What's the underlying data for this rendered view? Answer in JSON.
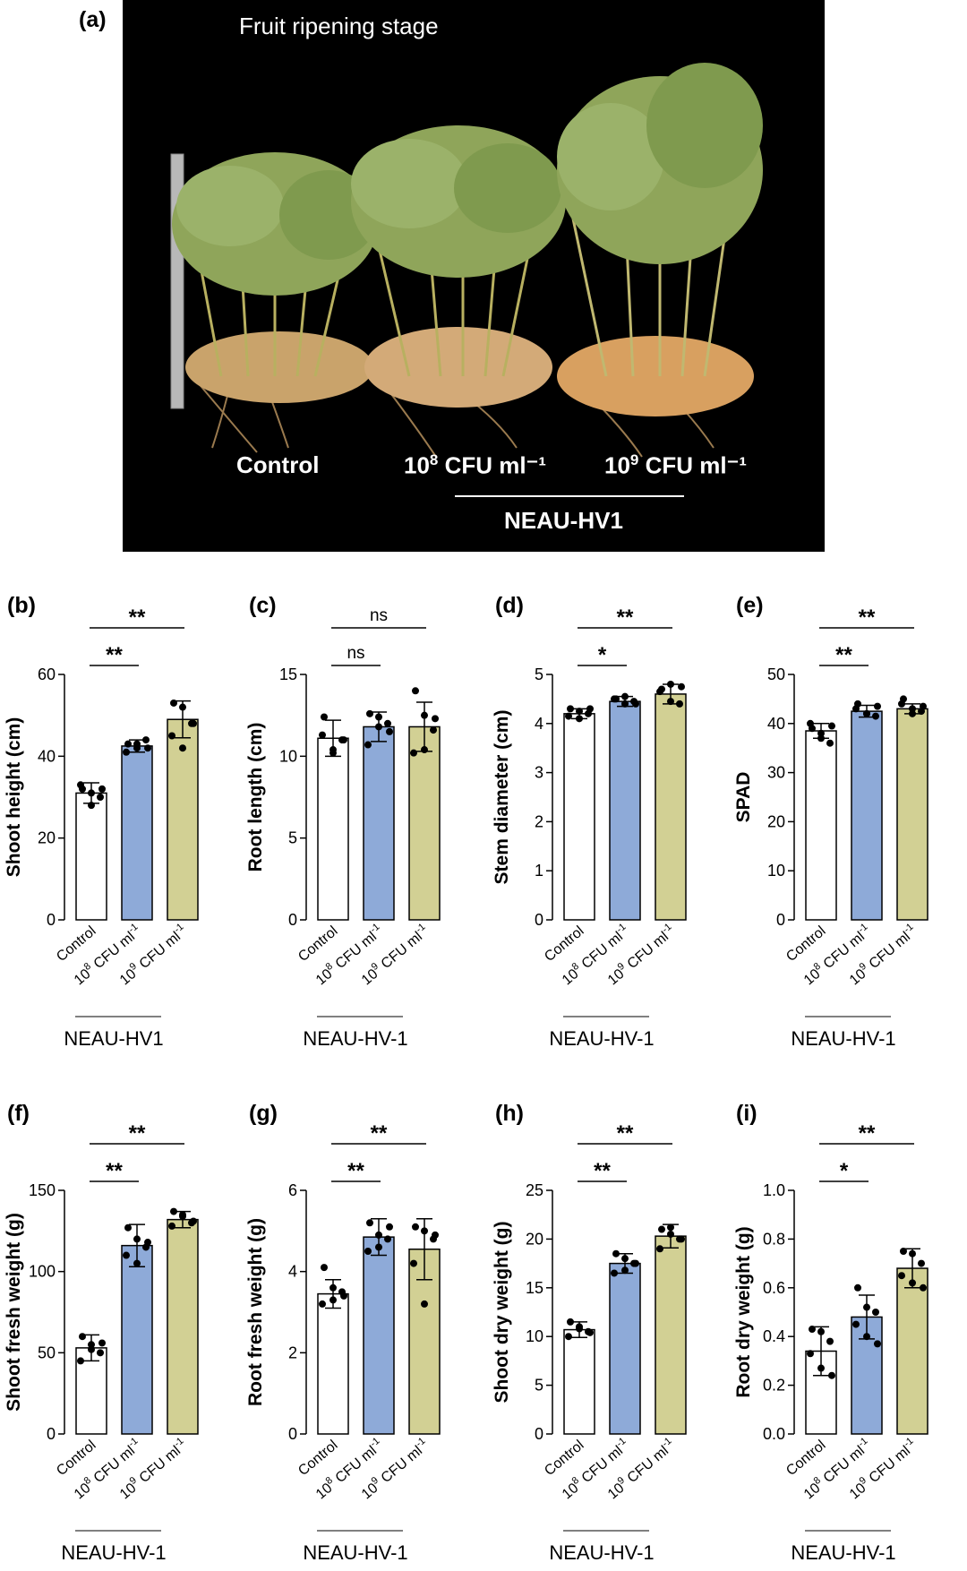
{
  "figure": {
    "panel_a": {
      "label": "(a)",
      "title": "Fruit ripening stage",
      "groups": [
        "Control",
        "10",
        "10"
      ],
      "group_sup": [
        "",
        "8",
        "9"
      ],
      "group_unit": [
        "",
        " CFU ml⁻¹",
        " CFU ml⁻¹"
      ],
      "strain": "NEAU-HV1",
      "colors": {
        "background": "#000000",
        "foliage": "#8fa55a",
        "pods": "#c9a36b",
        "ruler": "#b8b8b8"
      }
    }
  },
  "chart_data": [
    {
      "type": "bar",
      "panel": "(b)",
      "ylabel": "Shoot height (cm)",
      "ylim": [
        0,
        60
      ],
      "yticks": [
        0,
        20,
        40,
        60
      ],
      "categories": [
        "Control",
        "10^8 CFU ml^-1",
        "10^9 CFU ml^-1"
      ],
      "values": [
        31,
        42.5,
        49
      ],
      "errors": [
        2.5,
        1.5,
        4.5
      ],
      "points": [
        [
          32,
          31,
          30,
          33,
          28,
          32
        ],
        [
          43,
          42,
          44,
          41,
          43,
          42
        ],
        [
          53,
          52,
          48,
          45,
          42,
          48
        ]
      ],
      "sig": [
        {
          "from": 0,
          "to": 1,
          "text": "**"
        },
        {
          "from": 0,
          "to": 2,
          "text": "**"
        }
      ],
      "strain": "NEAU-HV1",
      "colors": [
        "#ffffff",
        "#8eaad8",
        "#d2d094"
      ]
    },
    {
      "type": "bar",
      "panel": "(c)",
      "ylabel": "Root length (cm)",
      "ylim": [
        0,
        15
      ],
      "yticks": [
        0,
        5,
        10,
        15
      ],
      "categories": [
        "Control",
        "10^8 CFU ml^-1",
        "10^9 CFU ml^-1"
      ],
      "values": [
        11.1,
        11.8,
        11.8
      ],
      "errors": [
        1.1,
        0.9,
        1.5
      ],
      "points": [
        [
          12.4,
          10.2,
          11,
          11.3,
          10.4,
          11
        ],
        [
          12.6,
          11.8,
          12,
          10.7,
          12.4,
          11.5
        ],
        [
          14,
          12.5,
          11.6,
          10.2,
          10.4,
          12.3
        ]
      ],
      "sig": [
        {
          "from": 0,
          "to": 1,
          "text": "ns"
        },
        {
          "from": 0,
          "to": 2,
          "text": "ns"
        }
      ],
      "strain": "NEAU-HV-1",
      "colors": [
        "#ffffff",
        "#8eaad8",
        "#d2d094"
      ]
    },
    {
      "type": "bar",
      "panel": "(d)",
      "ylabel": "Stem diameter (cm)",
      "ylim": [
        0,
        5
      ],
      "yticks": [
        0,
        1,
        2,
        3,
        4,
        5
      ],
      "categories": [
        "Control",
        "10^8 CFU ml^-1",
        "10^9 CFU ml^-1"
      ],
      "values": [
        4.2,
        4.45,
        4.6
      ],
      "errors": [
        0.1,
        0.1,
        0.2
      ],
      "points": [
        [
          4.3,
          4.1,
          4.2,
          4.15,
          4.25,
          4.3
        ],
        [
          4.5,
          4.4,
          4.45,
          4.5,
          4.55,
          4.4
        ],
        [
          4.7,
          4.8,
          4.4,
          4.65,
          4.45,
          4.75
        ]
      ],
      "sig": [
        {
          "from": 0,
          "to": 1,
          "text": "*"
        },
        {
          "from": 0,
          "to": 2,
          "text": "**"
        }
      ],
      "strain": "NEAU-HV-1",
      "colors": [
        "#ffffff",
        "#8eaad8",
        "#d2d094"
      ]
    },
    {
      "type": "bar",
      "panel": "(e)",
      "ylabel": "SPAD",
      "ylim": [
        0,
        50
      ],
      "yticks": [
        0,
        10,
        20,
        30,
        40,
        50
      ],
      "categories": [
        "Control",
        "10^8 CFU ml^-1",
        "10^9 CFU ml^-1"
      ],
      "values": [
        38.5,
        42.5,
        43
      ],
      "errors": [
        1.5,
        1.2,
        1
      ],
      "points": [
        [
          39,
          37,
          36,
          40,
          38,
          39.5
        ],
        [
          44,
          42,
          41.5,
          43,
          42,
          43.5
        ],
        [
          45,
          43,
          42.5,
          44,
          42,
          43.5
        ]
      ],
      "sig": [
        {
          "from": 0,
          "to": 1,
          "text": "**"
        },
        {
          "from": 0,
          "to": 2,
          "text": "**"
        }
      ],
      "strain": "NEAU-HV-1",
      "colors": [
        "#ffffff",
        "#8eaad8",
        "#d2d094"
      ]
    },
    {
      "type": "bar",
      "panel": "(f)",
      "ylabel": "Shoot fresh weight (g)",
      "ylim": [
        0,
        150
      ],
      "yticks": [
        0,
        50,
        100,
        150
      ],
      "categories": [
        "Control",
        "10^8 CFU ml^-1",
        "10^9 CFU ml^-1"
      ],
      "values": [
        53,
        116,
        132
      ],
      "errors": [
        8,
        13,
        5
      ],
      "points": [
        [
          60,
          55,
          50,
          45,
          52,
          56
        ],
        [
          127,
          120,
          115,
          110,
          105,
          118
        ],
        [
          137,
          134,
          130,
          128,
          135,
          131
        ]
      ],
      "sig": [
        {
          "from": 0,
          "to": 1,
          "text": "**"
        },
        {
          "from": 0,
          "to": 2,
          "text": "**"
        }
      ],
      "strain": "NEAU-HV-1",
      "colors": [
        "#ffffff",
        "#8eaad8",
        "#d2d094"
      ]
    },
    {
      "type": "bar",
      "panel": "(g)",
      "ylabel": "Root fresh weight (g)",
      "ylim": [
        0,
        6
      ],
      "yticks": [
        0,
        2,
        4,
        6
      ],
      "categories": [
        "Control",
        "10^8 CFU ml^-1",
        "10^9 CFU ml^-1"
      ],
      "values": [
        3.45,
        4.85,
        4.55
      ],
      "errors": [
        0.35,
        0.45,
        0.75
      ],
      "points": [
        [
          4.1,
          3.6,
          3.5,
          3.2,
          3.3,
          3.4
        ],
        [
          5.2,
          4.9,
          4.8,
          4.5,
          4.6,
          5.1
        ],
        [
          5.1,
          5.0,
          4.8,
          4.2,
          3.2,
          4.9
        ]
      ],
      "sig": [
        {
          "from": 0,
          "to": 1,
          "text": "**"
        },
        {
          "from": 0,
          "to": 2,
          "text": "**"
        }
      ],
      "strain": "NEAU-HV-1",
      "colors": [
        "#ffffff",
        "#8eaad8",
        "#d2d094"
      ]
    },
    {
      "type": "bar",
      "panel": "(h)",
      "ylabel": "Shoot dry weight (g)",
      "ylim": [
        0,
        25
      ],
      "yticks": [
        0,
        5,
        10,
        15,
        20,
        25
      ],
      "categories": [
        "Control",
        "10^8 CFU ml^-1",
        "10^9 CFU ml^-1"
      ],
      "values": [
        10.7,
        17.5,
        20.3
      ],
      "errors": [
        0.8,
        1,
        1.2
      ],
      "points": [
        [
          11.5,
          11,
          10.5,
          10,
          10.8,
          10.4
        ],
        [
          18.5,
          18,
          17.5,
          16.5,
          16.8,
          17.5
        ],
        [
          21,
          21.2,
          20,
          19,
          20.5,
          20
        ]
      ],
      "sig": [
        {
          "from": 0,
          "to": 1,
          "text": "**"
        },
        {
          "from": 0,
          "to": 2,
          "text": "**"
        }
      ],
      "strain": "NEAU-HV-1",
      "colors": [
        "#ffffff",
        "#8eaad8",
        "#d2d094"
      ]
    },
    {
      "type": "bar",
      "panel": "(i)",
      "ylabel": "Root dry weight (g)",
      "ylim": [
        0,
        1.0
      ],
      "yticks": [
        0.0,
        0.2,
        0.4,
        0.6,
        0.8,
        1.0
      ],
      "categories": [
        "Control",
        "10^8 CFU ml^-1",
        "10^9 CFU ml^-1"
      ],
      "values": [
        0.34,
        0.48,
        0.68
      ],
      "errors": [
        0.1,
        0.09,
        0.08
      ],
      "points": [
        [
          0.43,
          0.42,
          0.38,
          0.33,
          0.27,
          0.24
        ],
        [
          0.6,
          0.52,
          0.5,
          0.45,
          0.4,
          0.37
        ],
        [
          0.75,
          0.74,
          0.7,
          0.65,
          0.62,
          0.6
        ]
      ],
      "sig": [
        {
          "from": 0,
          "to": 1,
          "text": "*"
        },
        {
          "from": 0,
          "to": 2,
          "text": "**"
        }
      ],
      "strain": "NEAU-HV-1",
      "colors": [
        "#ffffff",
        "#8eaad8",
        "#d2d094"
      ]
    }
  ]
}
